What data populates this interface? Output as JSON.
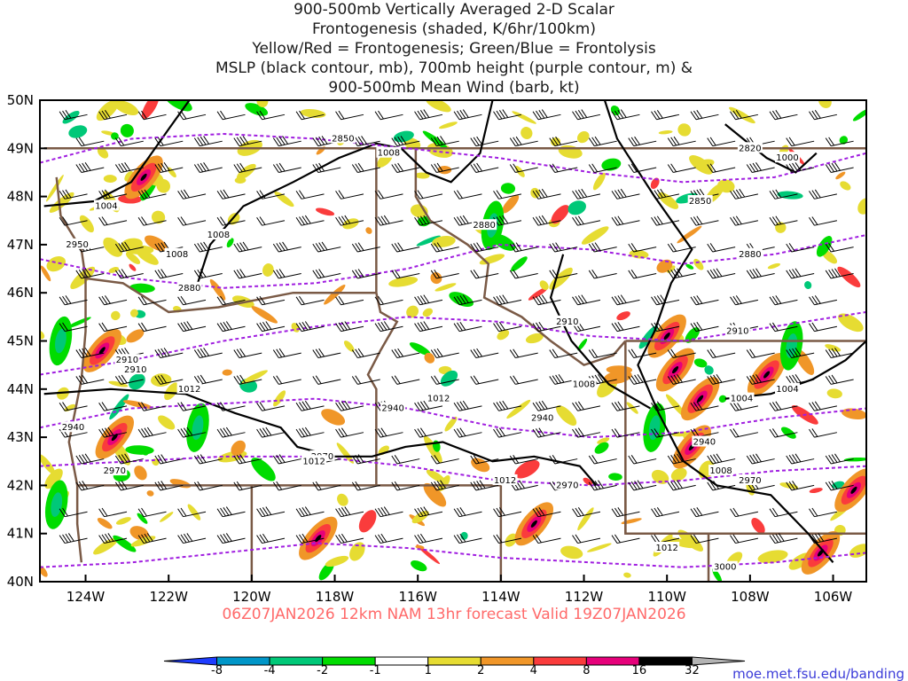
{
  "title_lines": [
    "900-500mb Vertically Averaged 2-D Scalar",
    "Frontogenesis (shaded, K/6hr/100km)",
    "Yellow/Red = Frontogenesis;  Green/Blue = Frontolysis",
    "MSLP (black contour, mb), 700mb height (purple contour, m) &",
    "900-500mb Mean Wind (barb, kt)"
  ],
  "run_info": "06Z07JAN2026 12km NAM 13hr forecast Valid 19Z07JAN2026",
  "source_url": "moe.met.fsu.edu/banding",
  "colors": {
    "frontogenesis": [
      "#e6dc32",
      "#f09628",
      "#fa3c3c",
      "#e6007a",
      "#000000",
      "#b4b4b4"
    ],
    "frontolysis": [
      "#00dc00",
      "#00c878",
      "#0096c8",
      "#1e3cff"
    ],
    "mslp": "#000000",
    "height": "#a01ee0",
    "borders": "#7a5a46"
  },
  "chart_data": {
    "type": "map",
    "lon_range": [
      -125.1,
      -105.2
    ],
    "lat_range": [
      40,
      50
    ],
    "x_ticks": [
      {
        "lon": -124,
        "label": "124W"
      },
      {
        "lon": -122,
        "label": "122W"
      },
      {
        "lon": -120,
        "label": "120W"
      },
      {
        "lon": -118,
        "label": "118W"
      },
      {
        "lon": -116,
        "label": "116W"
      },
      {
        "lon": -114,
        "label": "114W"
      },
      {
        "lon": -112,
        "label": "112W"
      },
      {
        "lon": -110,
        "label": "110W"
      },
      {
        "lon": -108,
        "label": "108W"
      },
      {
        "lon": -106,
        "label": "106W"
      }
    ],
    "y_ticks": [
      {
        "lat": 50,
        "label": "50N"
      },
      {
        "lat": 49,
        "label": "49N"
      },
      {
        "lat": 48,
        "label": "48N"
      },
      {
        "lat": 47,
        "label": "47N"
      },
      {
        "lat": 46,
        "label": "46N"
      },
      {
        "lat": 45,
        "label": "45N"
      },
      {
        "lat": 44,
        "label": "44N"
      },
      {
        "lat": 43,
        "label": "43N"
      },
      {
        "lat": 42,
        "label": "42N"
      },
      {
        "lat": 41,
        "label": "41N"
      },
      {
        "lat": 40,
        "label": "40N"
      }
    ],
    "colorbar_labels": [
      "-8",
      "-4",
      "-2",
      "-1",
      "1",
      "2",
      "4",
      "8",
      "16",
      "32"
    ],
    "height_contours": [
      {
        "label": "2850",
        "lat": [
          48.7,
          49.2,
          49.3,
          49.2,
          49.0,
          48.8,
          48.5,
          48.3,
          48.4,
          48.9
        ],
        "lon_lab": -117.8
      },
      {
        "label": "2880",
        "lat": [
          46.7,
          46.3,
          46.1,
          46.2,
          46.5,
          47.0,
          46.9,
          46.6,
          46.8,
          47.2
        ],
        "lon_lab": -121.5
      },
      {
        "label": "2910",
        "lat": [
          44.3,
          44.6,
          45.0,
          45.3,
          45.5,
          45.4,
          45.1,
          45.0,
          45.3,
          45.6
        ],
        "lon_lab": -123.0
      },
      {
        "label": "2940",
        "lat": [
          43.2,
          43.6,
          43.7,
          43.8,
          43.6,
          43.2,
          43.0,
          43.1,
          43.4,
          43.6
        ],
        "lon_lab": -116.6
      },
      {
        "label": "2970",
        "lat": [
          42.4,
          42.5,
          42.6,
          42.6,
          42.4,
          42.1,
          42.0,
          42.1,
          42.3,
          42.4
        ],
        "lon_lab": -118.3
      },
      {
        "label": "3000",
        "lat": [
          40.3,
          40.4,
          40.6,
          40.8,
          40.7,
          40.5,
          40.4,
          40.3,
          40.4,
          40.6
        ],
        "lon_lab": -108.6
      }
    ],
    "mslp_labels": [
      {
        "label": "1004",
        "lat": 47.8,
        "lon": -123.5
      },
      {
        "label": "1008",
        "lat": 47.2,
        "lon": -120.8
      },
      {
        "label": "1008",
        "lat": 46.8,
        "lon": -121.8
      },
      {
        "label": "1008",
        "lat": 48.9,
        "lon": -116.7
      },
      {
        "label": "1012",
        "lat": 44.0,
        "lon": -121.5
      },
      {
        "label": "1012",
        "lat": 43.8,
        "lon": -115.5
      },
      {
        "label": "1012",
        "lat": 42.5,
        "lon": -118.5
      },
      {
        "label": "1012",
        "lat": 42.1,
        "lon": -113.9
      },
      {
        "label": "1008",
        "lat": 44.1,
        "lon": -112.0
      },
      {
        "label": "1004",
        "lat": 43.8,
        "lon": -108.2
      },
      {
        "label": "1004",
        "lat": 44.0,
        "lon": -107.1
      },
      {
        "label": "1008",
        "lat": 42.3,
        "lon": -108.7
      },
      {
        "label": "1000",
        "lat": 48.8,
        "lon": -107.1
      },
      {
        "label": "1012",
        "lat": 40.7,
        "lon": -110.0
      }
    ],
    "extra_height_labels": [
      {
        "label": "2880",
        "lat": 47.4,
        "lon": -114.4
      },
      {
        "label": "2850",
        "lat": 47.9,
        "lon": -109.2
      },
      {
        "label": "2880",
        "lat": 46.8,
        "lon": -108.0
      },
      {
        "label": "2910",
        "lat": 45.4,
        "lon": -112.4
      },
      {
        "label": "2910",
        "lat": 45.2,
        "lon": -108.3
      },
      {
        "label": "2940",
        "lat": 43.4,
        "lon": -113.0
      },
      {
        "label": "2940",
        "lat": 42.9,
        "lon": -109.1
      },
      {
        "label": "2970",
        "lat": 42.0,
        "lon": -112.4
      },
      {
        "label": "2970",
        "lat": 42.1,
        "lon": -108.0
      },
      {
        "label": "2950",
        "lat": 47.0,
        "lon": -124.2
      },
      {
        "label": "2910",
        "lat": 44.4,
        "lon": -122.8
      },
      {
        "label": "2940",
        "lat": 43.2,
        "lon": -124.3
      },
      {
        "label": "2970",
        "lat": 42.3,
        "lon": -123.3
      },
      {
        "label": "2820",
        "lat": 49.0,
        "lon": -108.0
      }
    ]
  }
}
